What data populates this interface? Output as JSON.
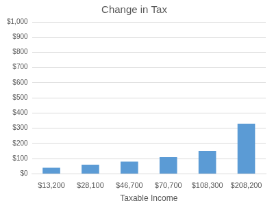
{
  "chart_data": {
    "type": "bar",
    "title": "Change in Tax",
    "x_label": "Taxable Income",
    "categories": [
      "$13,200",
      "$28,100",
      "$46,700",
      "$70,700",
      "$108,300",
      "$208,200"
    ],
    "values": [
      40,
      60,
      80,
      110,
      150,
      330
    ],
    "color": "#5b9bd5",
    "ylim": [
      0,
      1000
    ],
    "yticks": [
      {
        "value": 0,
        "label": "$0"
      },
      {
        "value": 100,
        "label": "$100"
      },
      {
        "value": 200,
        "label": "$200"
      },
      {
        "value": 300,
        "label": "$300"
      },
      {
        "value": 400,
        "label": "$400"
      },
      {
        "value": 500,
        "label": "$500"
      },
      {
        "value": 600,
        "label": "$600"
      },
      {
        "value": 700,
        "label": "$700"
      },
      {
        "value": 800,
        "label": "$800"
      },
      {
        "value": 900,
        "label": "$900"
      },
      {
        "value": 1000,
        "label": "$1,000"
      }
    ],
    "grid": true
  }
}
